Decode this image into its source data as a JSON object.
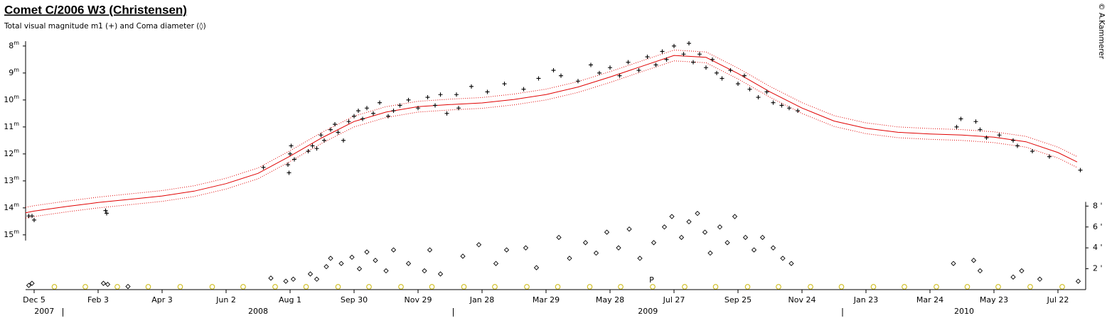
{
  "chart_data": {
    "type": "scatter",
    "title": "Comet C/2006 W3 (Christensen)",
    "subtitle": "Total visual magnitude m1 (+) and Coma diameter (◊)",
    "credit": "© A.Kammerer",
    "xlim": [
      "2007-11-27",
      "2010-08-17"
    ],
    "xticks": [
      {
        "value": "2007-12-05",
        "label": "Dec 5"
      },
      {
        "value": "2008-02-03",
        "label": "Feb 3"
      },
      {
        "value": "2008-04-03",
        "label": "Apr 3"
      },
      {
        "value": "2008-06-02",
        "label": "Jun 2"
      },
      {
        "value": "2008-08-01",
        "label": "Aug 1"
      },
      {
        "value": "2008-09-30",
        "label": "Sep 30"
      },
      {
        "value": "2008-11-29",
        "label": "Nov 29"
      },
      {
        "value": "2009-01-28",
        "label": "Jan 28"
      },
      {
        "value": "2009-03-29",
        "label": "Mar 29"
      },
      {
        "value": "2009-05-28",
        "label": "May 28"
      },
      {
        "value": "2009-07-27",
        "label": "Jul 27"
      },
      {
        "value": "2009-09-25",
        "label": "Sep 25"
      },
      {
        "value": "2009-11-24",
        "label": "Nov 24"
      },
      {
        "value": "2010-01-23",
        "label": "Jan 23"
      },
      {
        "value": "2010-03-24",
        "label": "Mar 24"
      },
      {
        "value": "2010-05-23",
        "label": "May 23"
      },
      {
        "value": "2010-07-22",
        "label": "Jul 22"
      }
    ],
    "years": [
      2007,
      2008,
      2009,
      2010
    ],
    "ylim": [
      7.82,
      17.03
    ],
    "y_inverted": true,
    "yticks": [
      8,
      9,
      10,
      11,
      12,
      13,
      14,
      15
    ],
    "ytick_unit": "m",
    "y2lim": [
      0,
      23.8
    ],
    "y2ticks": [
      {
        "value": 2,
        "label": "2 '"
      },
      {
        "value": 4,
        "label": "4 '"
      },
      {
        "value": 6,
        "label": "6 '"
      },
      {
        "value": 8,
        "label": "8 '"
      }
    ],
    "fit": {
      "color": "#e00000",
      "x": [
        "2007-11-27",
        "2007-12-05",
        "2008-01-04",
        "2008-02-03",
        "2008-03-04",
        "2008-04-03",
        "2008-05-03",
        "2008-06-02",
        "2008-07-02",
        "2008-08-01",
        "2008-08-31",
        "2008-09-30",
        "2008-10-30",
        "2008-11-29",
        "2008-12-29",
        "2009-01-28",
        "2009-02-27",
        "2009-03-29",
        "2009-04-28",
        "2009-05-28",
        "2009-06-27",
        "2009-07-27",
        "2009-08-26",
        "2009-09-25",
        "2009-10-25",
        "2009-11-24",
        "2009-12-24",
        "2010-01-23",
        "2010-02-22",
        "2010-03-24",
        "2010-04-23",
        "2010-05-23",
        "2010-06-22",
        "2010-07-22",
        "2010-08-09"
      ],
      "values": [
        14.18,
        14.12,
        13.95,
        13.8,
        13.68,
        13.56,
        13.38,
        13.1,
        12.72,
        12.08,
        11.4,
        10.8,
        10.45,
        10.25,
        10.17,
        10.11,
        9.98,
        9.8,
        9.52,
        9.15,
        8.75,
        8.35,
        8.42,
        9.02,
        9.7,
        10.3,
        10.78,
        11.05,
        11.2,
        11.26,
        11.3,
        11.38,
        11.55,
        11.95,
        12.3
      ],
      "band_upper": [
        13.98,
        13.92,
        13.75,
        13.6,
        13.48,
        13.36,
        13.18,
        12.9,
        12.52,
        11.88,
        11.2,
        10.6,
        10.25,
        10.05,
        9.97,
        9.91,
        9.78,
        9.6,
        9.32,
        8.95,
        8.55,
        8.15,
        8.22,
        8.82,
        9.5,
        10.1,
        10.58,
        10.85,
        11.0,
        11.06,
        11.1,
        11.18,
        11.35,
        11.75,
        12.1
      ],
      "band_lower": [
        14.38,
        14.32,
        14.15,
        14.0,
        13.88,
        13.76,
        13.58,
        13.3,
        12.92,
        12.28,
        11.6,
        11.0,
        10.65,
        10.45,
        10.37,
        10.31,
        10.18,
        10.0,
        9.72,
        9.35,
        8.95,
        8.55,
        8.62,
        9.22,
        9.9,
        10.5,
        10.98,
        11.25,
        11.4,
        11.46,
        11.5,
        11.58,
        11.75,
        12.15,
        12.5
      ]
    },
    "magnitudes": {
      "color": "#000000",
      "x": [
        "2007-11-30",
        "2007-12-03",
        "2007-12-05",
        "2008-02-10",
        "2008-02-11",
        "2008-07-07",
        "2008-07-30",
        "2008-07-31",
        "2008-08-01",
        "2008-08-02",
        "2008-08-05",
        "2008-08-18",
        "2008-08-22",
        "2008-08-26",
        "2008-08-30",
        "2008-09-02",
        "2008-09-08",
        "2008-09-12",
        "2008-09-15",
        "2008-09-20",
        "2008-09-25",
        "2008-09-30",
        "2008-10-04",
        "2008-10-08",
        "2008-10-12",
        "2008-10-18",
        "2008-10-24",
        "2008-11-01",
        "2008-11-06",
        "2008-11-12",
        "2008-11-20",
        "2008-11-29",
        "2008-12-08",
        "2008-12-15",
        "2008-12-20",
        "2008-12-26",
        "2009-01-04",
        "2009-01-06",
        "2009-01-18",
        "2009-02-02",
        "2009-02-18",
        "2009-03-08",
        "2009-03-22",
        "2009-04-05",
        "2009-04-12",
        "2009-04-28",
        "2009-05-10",
        "2009-05-18",
        "2009-05-28",
        "2009-06-06",
        "2009-06-14",
        "2009-06-24",
        "2009-07-02",
        "2009-07-10",
        "2009-07-16",
        "2009-07-20",
        "2009-07-27",
        "2009-08-05",
        "2009-08-10",
        "2009-08-14",
        "2009-08-20",
        "2009-08-26",
        "2009-09-01",
        "2009-09-05",
        "2009-09-10",
        "2009-09-18",
        "2009-09-25",
        "2009-10-01",
        "2009-10-06",
        "2009-10-14",
        "2009-10-22",
        "2009-10-28",
        "2009-11-05",
        "2009-11-12",
        "2009-11-20",
        "2010-04-18",
        "2010-04-22",
        "2010-05-06",
        "2010-05-10",
        "2010-05-16",
        "2010-05-28",
        "2010-06-10",
        "2010-06-14",
        "2010-06-28",
        "2010-07-14",
        "2010-08-12"
      ],
      "values": [
        14.3,
        14.3,
        14.45,
        14.1,
        14.2,
        12.5,
        12.4,
        12.7,
        12.0,
        11.7,
        12.2,
        11.9,
        11.7,
        11.8,
        11.3,
        11.5,
        11.1,
        10.9,
        11.2,
        11.5,
        10.8,
        10.6,
        10.4,
        10.7,
        10.3,
        10.5,
        10.1,
        10.6,
        10.4,
        10.2,
        10.0,
        10.3,
        9.9,
        10.2,
        9.8,
        10.5,
        9.8,
        10.3,
        9.5,
        9.7,
        9.4,
        9.6,
        9.2,
        8.9,
        9.1,
        9.3,
        8.7,
        9.0,
        8.8,
        9.1,
        8.6,
        8.9,
        8.4,
        8.7,
        8.2,
        8.5,
        8.0,
        8.3,
        7.9,
        8.6,
        8.3,
        8.8,
        8.5,
        9.0,
        9.2,
        8.9,
        9.4,
        9.1,
        9.6,
        9.9,
        9.7,
        10.1,
        10.2,
        10.3,
        10.4,
        11.0,
        10.7,
        10.8,
        11.1,
        11.4,
        11.3,
        11.5,
        11.7,
        11.9,
        12.1,
        12.6
      ]
    },
    "coma": {
      "color": "#000000",
      "axis": "y2",
      "x": [
        "2007-11-30",
        "2007-12-03",
        "2008-02-08",
        "2008-02-12",
        "2008-03-02",
        "2008-07-14",
        "2008-07-28",
        "2008-08-04",
        "2008-08-20",
        "2008-08-26",
        "2008-09-04",
        "2008-09-08",
        "2008-09-18",
        "2008-09-28",
        "2008-10-05",
        "2008-10-12",
        "2008-10-20",
        "2008-10-30",
        "2008-11-06",
        "2008-11-20",
        "2008-12-05",
        "2008-12-10",
        "2008-12-20",
        "2009-01-10",
        "2009-01-25",
        "2009-02-10",
        "2009-02-20",
        "2009-03-10",
        "2009-03-20",
        "2009-04-10",
        "2009-04-20",
        "2009-05-05",
        "2009-05-15",
        "2009-05-25",
        "2009-06-05",
        "2009-06-15",
        "2009-06-25",
        "2009-07-08",
        "2009-07-18",
        "2009-07-25",
        "2009-08-03",
        "2009-08-10",
        "2009-08-18",
        "2009-08-25",
        "2009-08-30",
        "2009-09-08",
        "2009-09-15",
        "2009-09-22",
        "2009-10-02",
        "2009-10-10",
        "2009-10-18",
        "2009-10-28",
        "2009-11-06",
        "2009-11-14",
        "2010-04-15",
        "2010-05-04",
        "2010-05-10",
        "2010-06-10",
        "2010-06-18",
        "2010-07-05",
        "2010-08-10"
      ],
      "values": [
        0.4,
        0.6,
        0.6,
        0.5,
        0.3,
        1.1,
        0.8,
        1.0,
        1.5,
        1.0,
        2.2,
        3.0,
        2.5,
        3.1,
        2.0,
        3.6,
        2.8,
        1.8,
        3.8,
        2.5,
        1.8,
        3.8,
        1.5,
        3.2,
        4.3,
        2.5,
        3.8,
        4.0,
        2.1,
        5.0,
        3.0,
        4.5,
        3.5,
        5.5,
        4.0,
        5.8,
        3.0,
        4.5,
        6.0,
        7.0,
        5.0,
        6.5,
        7.3,
        5.5,
        3.5,
        6.0,
        4.5,
        7.0,
        5.0,
        3.8,
        5.0,
        4.0,
        3.0,
        2.5,
        2.5,
        2.8,
        1.8,
        1.2,
        1.8,
        1.0,
        0.8
      ]
    },
    "full_moons": {
      "color": "#c8b400",
      "x": [
        "2007-12-24",
        "2008-01-22",
        "2008-02-21",
        "2008-03-21",
        "2008-04-20",
        "2008-05-20",
        "2008-06-18",
        "2008-07-18",
        "2008-08-16",
        "2008-09-15",
        "2008-10-14",
        "2008-11-13",
        "2008-12-12",
        "2009-01-11",
        "2009-02-09",
        "2009-03-11",
        "2009-04-09",
        "2009-05-09",
        "2009-06-07",
        "2009-07-07",
        "2009-08-06",
        "2009-09-04",
        "2009-10-04",
        "2009-11-02",
        "2009-12-02",
        "2009-12-31",
        "2010-01-30",
        "2010-02-28",
        "2010-03-30",
        "2010-04-28",
        "2010-05-27",
        "2010-06-26",
        "2010-07-26"
      ]
    },
    "annotation": {
      "text": "P",
      "x": "2009-07-06"
    }
  }
}
